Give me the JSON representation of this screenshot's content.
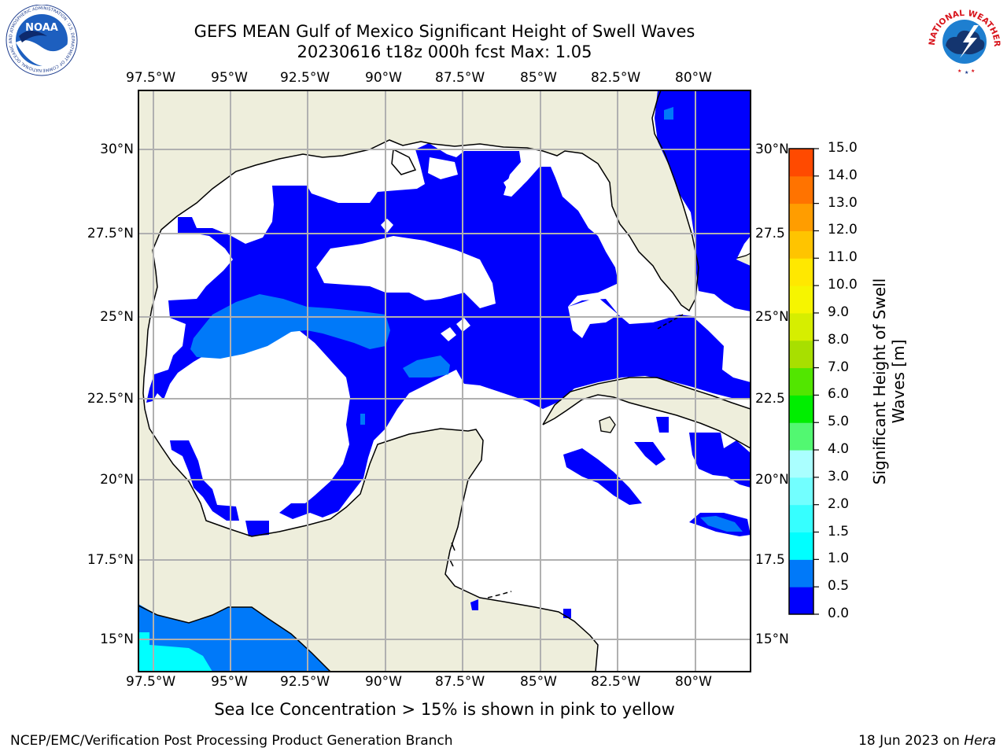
{
  "header": {
    "title_line1": "GEFS MEAN Gulf of Mexico Significant Height of Swell Waves",
    "title_line2": "20230616 t18z 000h fcst   Max: 1.05"
  },
  "logos": {
    "left": "NOAA",
    "left_ring": "NATIONAL OCEANIC AND ATMOSPHERIC ADMINISTRATION · U.S. DEPARTMENT OF COMMERCE",
    "right": "NATIONAL WEATHER SERVICE"
  },
  "colors": {
    "land": "#eeeedc",
    "ocean_missing": "#ffffff",
    "grid": "#b0b0b0"
  },
  "map": {
    "lon_labels": [
      "97.5°W",
      "95°W",
      "92.5°W",
      "90°W",
      "87.5°W",
      "85°W",
      "82.5°W",
      "80°W"
    ],
    "lat_labels": [
      "30°N",
      "27.5°N",
      "25°N",
      "22.5°N",
      "20°N",
      "17.5°N",
      "15°N"
    ],
    "right_lat_labels": [
      "30°N",
      "27.5",
      "25°N",
      "22.5",
      "20°N",
      "17.5",
      "15°N"
    ]
  },
  "colorbar": {
    "label": "Significant Height of Swell Waves [m]",
    "label_line1": "Significant Height of Swell",
    "label_line2": "Waves [m]",
    "ticks": [
      "0.0",
      "0.5",
      "1.0",
      "1.5",
      "2.0",
      "3.0",
      "4.0",
      "5.0",
      "6.0",
      "7.0",
      "8.0",
      "9.0",
      "10.0",
      "11.0",
      "12.0",
      "13.0",
      "14.0",
      "15.0"
    ],
    "colors": [
      "#0000fd",
      "#0079f9",
      "#00ffff",
      "#36ffff",
      "#72ffff",
      "#aaffff",
      "#52f871",
      "#00ee00",
      "#52e600",
      "#a8df00",
      "#d6ee00",
      "#f6f500",
      "#ffe800",
      "#ffc400",
      "#ff9d00",
      "#ff7300",
      "#ff4a00",
      "#ff0000"
    ]
  },
  "note": "Sea Ice Concentration > 15% is shown in pink to yellow",
  "footer": {
    "left": "NCEP/EMC/Verification Post Processing Product Generation Branch",
    "right_prefix": "18 Jun 2023 on ",
    "right_host": "Hera"
  }
}
